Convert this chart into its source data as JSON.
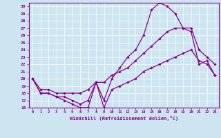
{
  "xlabel": "Windchill (Refroidissement éolien,°C)",
  "bg_color": "#cce5f0",
  "line_color": "#880088",
  "grid_color": "#ffffff",
  "xlim": [
    -0.5,
    23.5
  ],
  "ylim": [
    16,
    30.5
  ],
  "xticks": [
    0,
    1,
    2,
    3,
    4,
    5,
    6,
    7,
    8,
    9,
    10,
    11,
    12,
    13,
    14,
    15,
    16,
    17,
    18,
    19,
    20,
    21,
    22,
    23
  ],
  "yticks": [
    16,
    17,
    18,
    19,
    20,
    21,
    22,
    23,
    24,
    25,
    26,
    27,
    28,
    29,
    30
  ],
  "series": [
    {
      "x": [
        0,
        1,
        2,
        3,
        4,
        5,
        6,
        7,
        8,
        9,
        10,
        11,
        12,
        13,
        14,
        15,
        16,
        17,
        18,
        19,
        20,
        21,
        22,
        23
      ],
      "y": [
        20,
        18,
        18,
        17.5,
        17,
        16.5,
        16,
        16,
        19.5,
        16,
        18.5,
        19,
        19.5,
        20,
        21,
        21.5,
        22,
        22.5,
        23,
        23.5,
        24,
        22.5,
        22,
        20.5
      ]
    },
    {
      "x": [
        0,
        1,
        2,
        3,
        4,
        5,
        6,
        7,
        8,
        9,
        10,
        11,
        12,
        13,
        14,
        15,
        16,
        17,
        18,
        19,
        20,
        21,
        22,
        23
      ],
      "y": [
        20,
        18.5,
        18.5,
        18,
        18,
        18,
        18,
        18.5,
        19.5,
        19.5,
        20.5,
        21,
        21.5,
        22.5,
        23.5,
        24.5,
        25.5,
        26.5,
        27,
        27,
        27,
        24,
        23,
        22
      ]
    },
    {
      "x": [
        0,
        1,
        2,
        3,
        4,
        5,
        6,
        7,
        8,
        9,
        10,
        11,
        12,
        13,
        14,
        15,
        16,
        17,
        18,
        19,
        20,
        21,
        22,
        23
      ],
      "y": [
        20,
        18,
        18,
        17.5,
        17.5,
        17,
        16.5,
        17,
        19.5,
        17,
        20,
        21.5,
        23,
        24,
        26,
        29.5,
        30.5,
        30,
        29,
        27,
        26.5,
        22,
        22.5,
        20.5
      ]
    }
  ]
}
